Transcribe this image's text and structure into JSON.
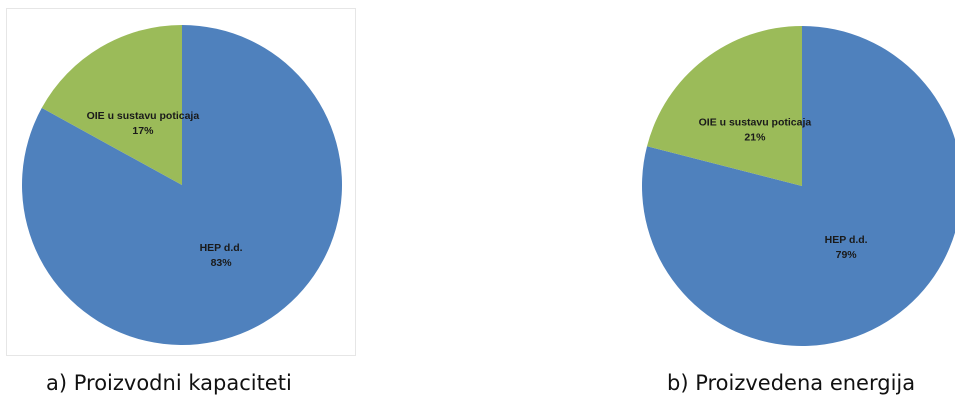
{
  "chart_data": [
    {
      "type": "pie",
      "caption": "a) Proizvodni kapaciteti",
      "slices": [
        {
          "label": "HEP d.d.",
          "value": 83,
          "value_label": "83%",
          "color": "#4f81bd"
        },
        {
          "label": "OIE u sustavu poticaja",
          "value": 17,
          "value_label": "17%",
          "color": "#9bbb59"
        }
      ]
    },
    {
      "type": "pie",
      "caption": "b) Proizvedena energija",
      "slices": [
        {
          "label": "HEP d.d.",
          "value": 79,
          "value_label": "79%",
          "color": "#4f81bd"
        },
        {
          "label": "OIE u sustavu poticaja",
          "value": 21,
          "value_label": "21%",
          "color": "#9bbb59"
        }
      ]
    }
  ]
}
